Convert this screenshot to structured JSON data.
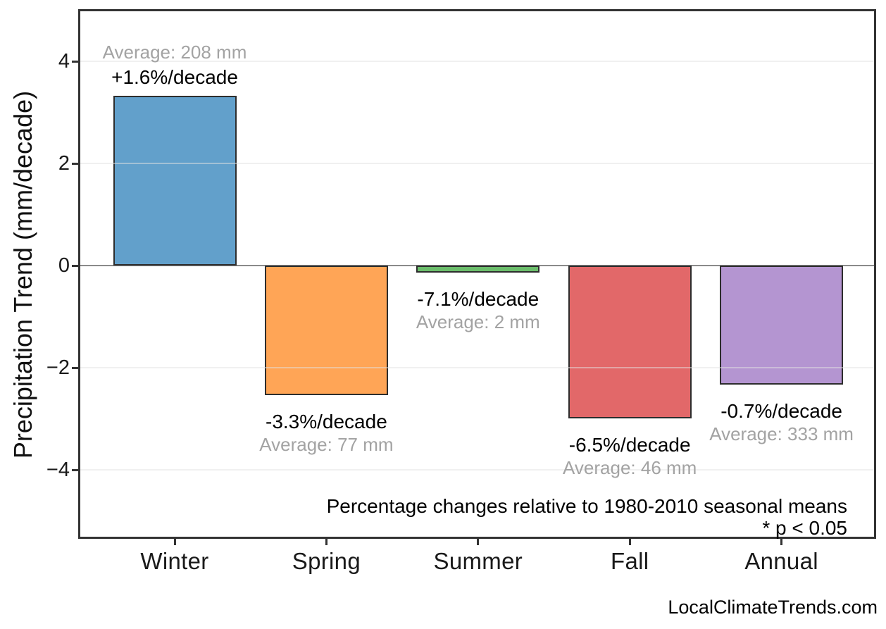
{
  "chart_data": {
    "type": "bar",
    "title": "",
    "xlabel": "",
    "ylabel": "Precipitation Trend (mm/decade)",
    "categories": [
      "Winter",
      "Spring",
      "Summer",
      "Fall",
      "Annual"
    ],
    "values": [
      3.33,
      -2.54,
      -0.14,
      -2.99,
      -2.33
    ],
    "pct_labels": [
      "+1.6%/decade",
      "-3.3%/decade",
      "-7.1%/decade",
      "-6.5%/decade",
      "-0.7%/decade"
    ],
    "avg_labels": [
      "Average: 208 mm",
      "Average: 77 mm",
      "Average: 2 mm",
      "Average: 46 mm",
      "Average: 333 mm"
    ],
    "bar_colors": [
      "#62a0cb",
      "#ffa556",
      "#6bbd6b",
      "#e26869",
      "#b495d1"
    ],
    "bar_edge_color": "#2d2d2d",
    "y_ticks": [
      4,
      2,
      0,
      -2,
      -4
    ],
    "y_tick_labels": [
      "4",
      "2",
      "0",
      "−2",
      "−4"
    ],
    "ylim": [
      -5.4,
      5.05
    ],
    "grid": "horizontal",
    "legend": "none",
    "grid_color": "#e6e6e6",
    "zero_line_color": "#8a8a8a",
    "annotations": [
      "Percentage changes relative to 1980-2010 seasonal means",
      "* p < 0.05"
    ]
  },
  "footer": {
    "watermark": "LocalClimateTrends.com"
  }
}
